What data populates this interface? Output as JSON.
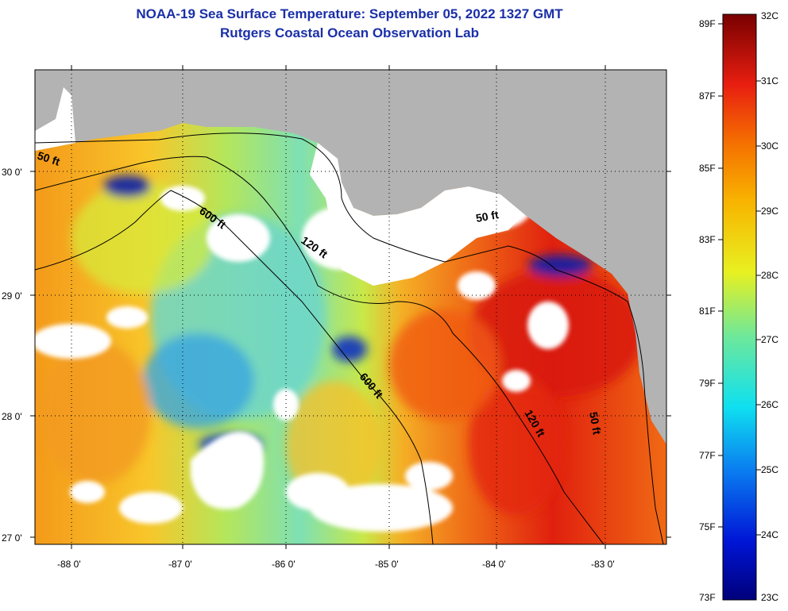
{
  "header": {
    "title": "NOAA-19 Sea Surface Temperature:  September 05, 2022 1327 GMT",
    "subtitle": "Rutgers Coastal Ocean Observation Lab"
  },
  "axes": {
    "lat_labels": [
      "30 0'",
      "29 0'",
      "28 0'",
      "27 0'"
    ],
    "lon_labels": [
      "-88 0'",
      "-87 0'",
      "-86 0'",
      "-85 0'",
      "-84 0'",
      "-83 0'"
    ]
  },
  "colorbar": {
    "fahrenheit": [
      "89F",
      "87F",
      "85F",
      "83F",
      "81F",
      "79F",
      "77F",
      "75F",
      "73F"
    ],
    "celsius": [
      "32C",
      "31C",
      "30C",
      "29C",
      "28C",
      "27C",
      "26C",
      "25C",
      "24C",
      "23C"
    ]
  },
  "contours": {
    "labels": [
      "50 ft",
      "600 ft",
      "120 ft",
      "50 ft",
      "600 ft",
      "120 ft",
      "50 ft"
    ]
  },
  "colors": {
    "title": "#1a2fa8",
    "land": "#b3b3b3",
    "cloud": "#ffffff"
  }
}
